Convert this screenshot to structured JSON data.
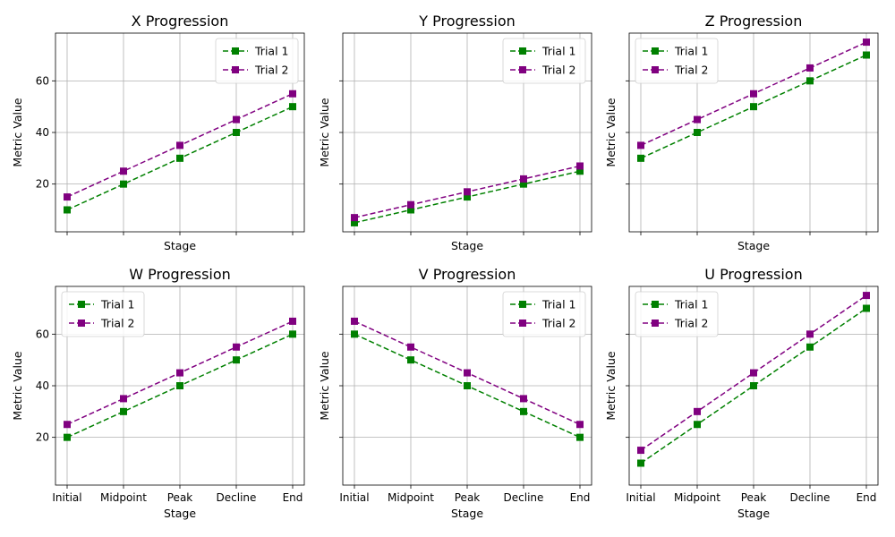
{
  "chart_data": [
    {
      "type": "line",
      "title": "X Progression",
      "xlabel": "Stage",
      "ylabel": "Metric Value",
      "categories": [
        "Initial",
        "Midpoint",
        "Peak",
        "Decline",
        "End"
      ],
      "series": [
        {
          "name": "Trial 1",
          "values": [
            10,
            20,
            30,
            40,
            50
          ],
          "color": "#008000"
        },
        {
          "name": "Trial 2",
          "values": [
            15,
            25,
            35,
            45,
            55
          ],
          "color": "#800080"
        }
      ]
    },
    {
      "type": "line",
      "title": "Y Progression",
      "xlabel": "Stage",
      "ylabel": "Metric Value",
      "categories": [
        "Initial",
        "Midpoint",
        "Peak",
        "Decline",
        "End"
      ],
      "series": [
        {
          "name": "Trial 1",
          "values": [
            5,
            10,
            15,
            20,
            25
          ],
          "color": "#008000"
        },
        {
          "name": "Trial 2",
          "values": [
            7,
            12,
            17,
            22,
            27
          ],
          "color": "#800080"
        }
      ]
    },
    {
      "type": "line",
      "title": "Z Progression",
      "xlabel": "Stage",
      "ylabel": "Metric Value",
      "categories": [
        "Initial",
        "Midpoint",
        "Peak",
        "Decline",
        "End"
      ],
      "series": [
        {
          "name": "Trial 1",
          "values": [
            30,
            40,
            50,
            60,
            70
          ],
          "color": "#008000"
        },
        {
          "name": "Trial 2",
          "values": [
            35,
            45,
            55,
            65,
            75
          ],
          "color": "#800080"
        }
      ]
    },
    {
      "type": "line",
      "title": "W Progression",
      "xlabel": "Stage",
      "ylabel": "Metric Value",
      "categories": [
        "Initial",
        "Midpoint",
        "Peak",
        "Decline",
        "End"
      ],
      "series": [
        {
          "name": "Trial 1",
          "values": [
            20,
            30,
            40,
            50,
            60
          ],
          "color": "#008000"
        },
        {
          "name": "Trial 2",
          "values": [
            25,
            35,
            45,
            55,
            65
          ],
          "color": "#800080"
        }
      ]
    },
    {
      "type": "line",
      "title": "V Progression",
      "xlabel": "Stage",
      "ylabel": "Metric Value",
      "categories": [
        "Initial",
        "Midpoint",
        "Peak",
        "Decline",
        "End"
      ],
      "series": [
        {
          "name": "Trial 1",
          "values": [
            60,
            50,
            40,
            30,
            20
          ],
          "color": "#008000"
        },
        {
          "name": "Trial 2",
          "values": [
            65,
            55,
            45,
            35,
            25
          ],
          "color": "#800080"
        }
      ]
    },
    {
      "type": "line",
      "title": "U Progression",
      "xlabel": "Stage",
      "ylabel": "Metric Value",
      "categories": [
        "Initial",
        "Midpoint",
        "Peak",
        "Decline",
        "End"
      ],
      "series": [
        {
          "name": "Trial 1",
          "values": [
            10,
            25,
            40,
            55,
            70
          ],
          "color": "#008000"
        },
        {
          "name": "Trial 2",
          "values": [
            15,
            30,
            45,
            60,
            75
          ],
          "color": "#800080"
        }
      ]
    }
  ],
  "shared_axes": {
    "ylim": [
      1.5,
      78.5
    ],
    "yticks": [
      20,
      40,
      60
    ],
    "grid": true,
    "line_style": "dashed",
    "marker": "square"
  }
}
